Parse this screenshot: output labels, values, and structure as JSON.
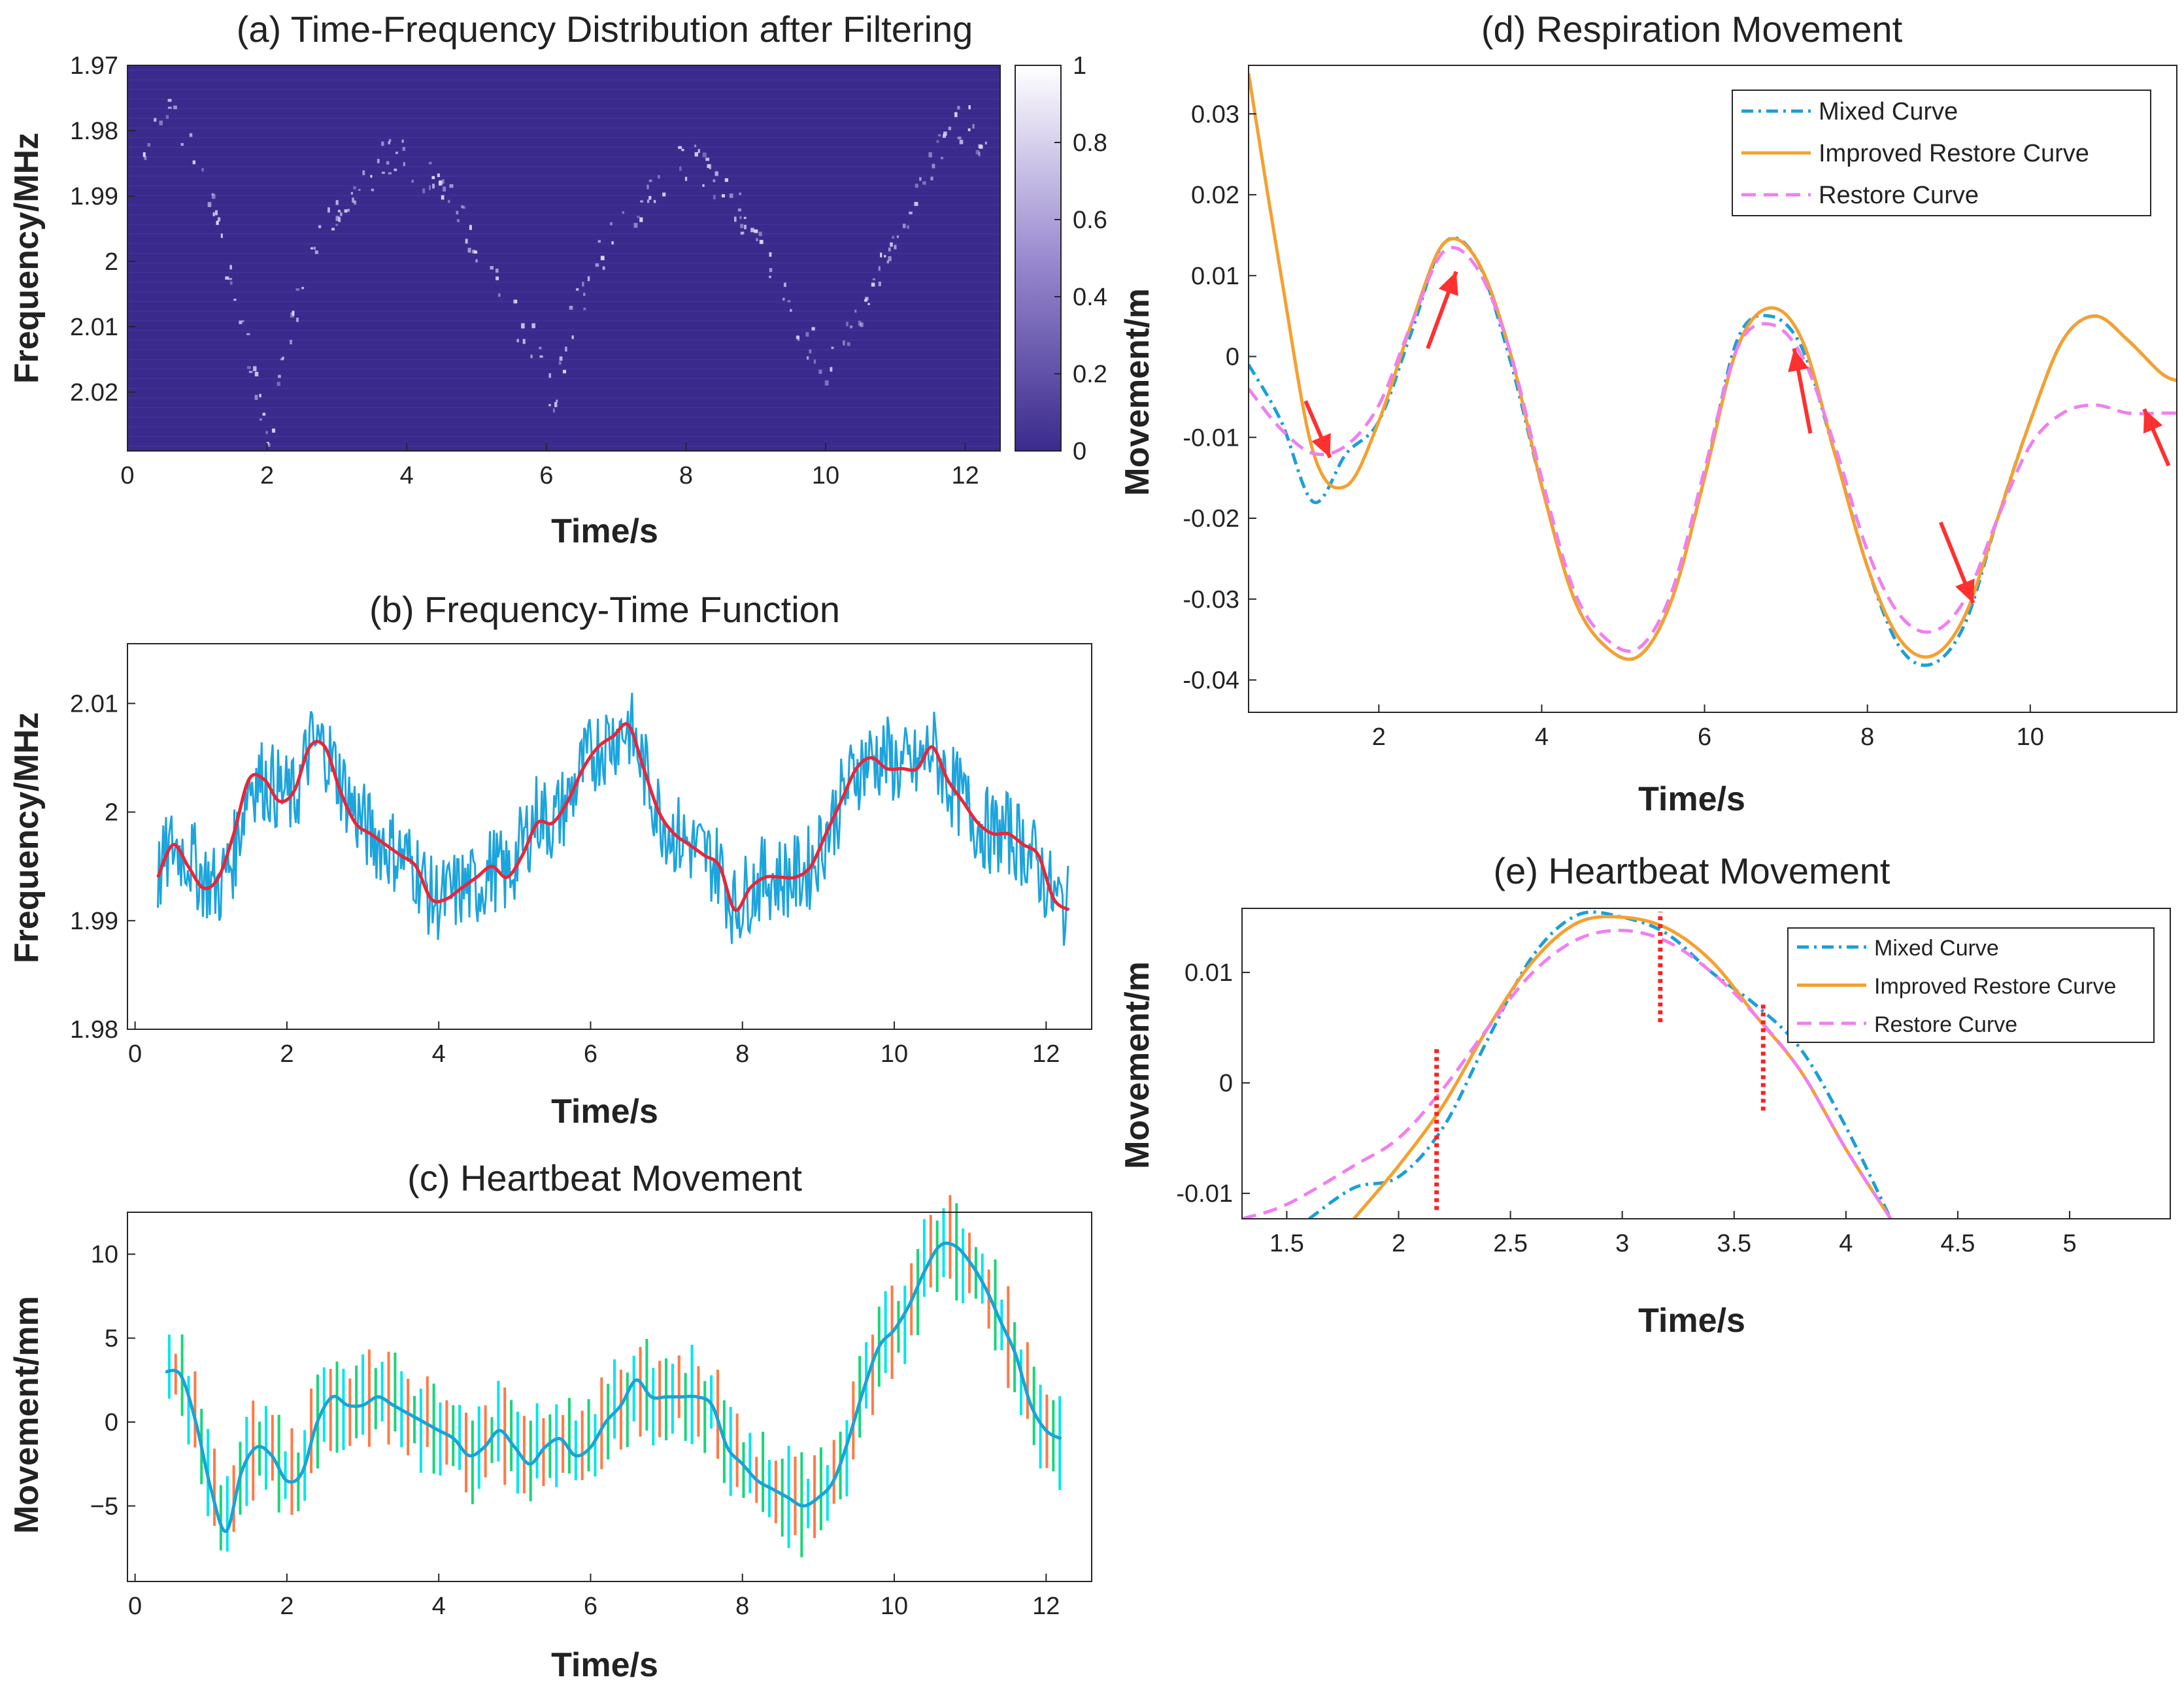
{
  "chart_data": [
    {
      "id": "a",
      "type": "heatmap",
      "title": "(a) Time-Frequency Distribution after Filtering",
      "xlabel": "Time/s",
      "ylabel": "Frequency/MHz",
      "xlim": [
        0,
        12.5
      ],
      "ylim": [
        1.97,
        2.029
      ],
      "y_reversed": true,
      "xticks": [
        0,
        2,
        4,
        6,
        8,
        10,
        12
      ],
      "yticks": [
        1.97,
        1.98,
        1.99,
        2,
        2.01,
        2.02
      ],
      "ytick_labels": [
        "1.97",
        "1.98",
        "1.99",
        "2",
        "2.01",
        "2.02"
      ],
      "colorbar": {
        "min": 0,
        "max": 1,
        "ticks": [
          0,
          0.2,
          0.4,
          0.6,
          0.8,
          1
        ],
        "tick_labels": [
          "0",
          "0.2",
          "0.4",
          "0.6",
          "0.8",
          "1"
        ]
      },
      "colors": {
        "background": "#3a2a8c",
        "ridge": "#e8e0ff"
      },
      "ridge": [
        [
          0.2,
          1.985
        ],
        [
          0.5,
          1.977
        ],
        [
          0.9,
          1.982
        ],
        [
          1.2,
          1.992
        ],
        [
          1.5,
          2.005
        ],
        [
          1.8,
          2.018
        ],
        [
          2.0,
          2.028
        ],
        [
          2.3,
          2.012
        ],
        [
          2.6,
          1.998
        ],
        [
          3.0,
          1.992
        ],
        [
          3.4,
          1.987
        ],
        [
          3.8,
          1.983
        ],
        [
          4.2,
          1.986
        ],
        [
          4.6,
          1.99
        ],
        [
          5.0,
          1.998
        ],
        [
          5.5,
          2.008
        ],
        [
          5.9,
          2.014
        ],
        [
          6.1,
          2.023
        ],
        [
          6.3,
          2.01
        ],
        [
          6.7,
          2.0
        ],
        [
          7.1,
          1.994
        ],
        [
          7.6,
          1.989
        ],
        [
          7.9,
          1.984
        ],
        [
          8.3,
          1.986
        ],
        [
          8.8,
          1.993
        ],
        [
          9.3,
          2.003
        ],
        [
          9.7,
          2.011
        ],
        [
          10.0,
          2.017
        ],
        [
          10.4,
          2.009
        ],
        [
          10.9,
          1.998
        ],
        [
          11.3,
          1.99
        ],
        [
          11.7,
          1.981
        ],
        [
          12.0,
          1.978
        ],
        [
          12.3,
          1.985
        ]
      ]
    },
    {
      "id": "b",
      "type": "line",
      "title": "(b) Frequency-Time Function",
      "xlabel": "Time/s",
      "ylabel": "Frequency/MHz",
      "xlim": [
        -0.1,
        12.6
      ],
      "ylim": [
        1.98,
        2.0155
      ],
      "xticks": [
        0,
        2,
        4,
        6,
        8,
        10,
        12
      ],
      "yticks": [
        1.98,
        1.99,
        2,
        2.01
      ],
      "ytick_labels": [
        "1.98",
        "1.99",
        "2",
        "2.01"
      ],
      "series": [
        {
          "role": "raw",
          "color": "#1ca4dc",
          "x": [
            0.3,
            0.5,
            0.7,
            0.9,
            1.1,
            1.3,
            1.5,
            1.7,
            1.9,
            2.1,
            2.3,
            2.5,
            2.7,
            2.9,
            3.1,
            3.3,
            3.5,
            3.7,
            3.9,
            4.1,
            4.3,
            4.5,
            4.7,
            4.9,
            5.1,
            5.3,
            5.5,
            5.7,
            5.9,
            6.1,
            6.3,
            6.5,
            6.7,
            6.9,
            7.1,
            7.3,
            7.5,
            7.7,
            7.9,
            8.1,
            8.3,
            8.5,
            8.7,
            8.9,
            9.1,
            9.3,
            9.5,
            9.7,
            9.9,
            10.1,
            10.3,
            10.5,
            10.7,
            10.9,
            11.1,
            11.3,
            11.5,
            11.7,
            11.9,
            12.1,
            12.3
          ],
          "y": [
            1.994,
            1.997,
            1.996,
            1.994,
            1.993,
            1.996,
            2.003,
            2.003,
            2.002,
            2.001,
            2.006,
            2.006,
            2.003,
            2.0,
            1.998,
            1.997,
            1.996,
            1.995,
            1.992,
            1.992,
            1.993,
            1.993,
            1.995,
            1.994,
            1.997,
            2.0,
            1.999,
            2.001,
            2.004,
            2.006,
            2.007,
            2.008,
            2.004,
            2.0,
            1.998,
            1.997,
            1.996,
            1.995,
            1.991,
            1.993,
            1.994,
            1.994,
            1.994,
            1.995,
            1.998,
            2.001,
            2.004,
            2.005,
            2.005,
            2.004,
            2.004,
            2.006,
            2.003,
            2.001,
            1.999,
            1.998,
            1.998,
            1.997,
            1.995,
            1.992,
            1.991
          ],
          "noise_amplitude": 0.004
        },
        {
          "role": "smoothed",
          "color": "#e8263a",
          "x": [
            0.3,
            0.5,
            0.7,
            0.9,
            1.1,
            1.3,
            1.5,
            1.7,
            1.9,
            2.1,
            2.3,
            2.5,
            2.7,
            2.9,
            3.1,
            3.3,
            3.5,
            3.7,
            3.9,
            4.1,
            4.3,
            4.5,
            4.7,
            4.9,
            5.1,
            5.3,
            5.5,
            5.7,
            5.9,
            6.1,
            6.3,
            6.5,
            6.7,
            6.9,
            7.1,
            7.3,
            7.5,
            7.7,
            7.9,
            8.1,
            8.3,
            8.5,
            8.7,
            8.9,
            9.1,
            9.3,
            9.5,
            9.7,
            9.9,
            10.1,
            10.3,
            10.5,
            10.7,
            10.9,
            11.1,
            11.3,
            11.5,
            11.7,
            11.9,
            12.1,
            12.3
          ],
          "y": [
            1.994,
            1.997,
            1.995,
            1.993,
            1.994,
            1.998,
            2.003,
            2.003,
            2.001,
            2.002,
            2.006,
            2.006,
            2.002,
            1.999,
            1.998,
            1.997,
            1.996,
            1.995,
            1.992,
            1.992,
            1.993,
            1.994,
            1.995,
            1.994,
            1.996,
            1.999,
            1.999,
            2.001,
            2.004,
            2.006,
            2.007,
            2.008,
            2.004,
            2.0,
            1.998,
            1.997,
            1.996,
            1.995,
            1.991,
            1.993,
            1.994,
            1.994,
            1.994,
            1.995,
            1.998,
            2.001,
            2.004,
            2.005,
            2.004,
            2.004,
            2.004,
            2.006,
            2.003,
            2.001,
            1.999,
            1.998,
            1.998,
            1.997,
            1.996,
            1.992,
            1.991
          ]
        }
      ]
    },
    {
      "id": "c",
      "type": "line",
      "title": "(c) Heartbeat Movement",
      "xlabel": "Time/s",
      "ylabel": "Movement/mm",
      "xlim": [
        -0.1,
        12.6
      ],
      "ylim": [
        -9.5,
        12.5
      ],
      "xticks": [
        0,
        2,
        4,
        6,
        8,
        10,
        12
      ],
      "yticks": [
        -5,
        0,
        5,
        10
      ],
      "ytick_labels": [
        "−5",
        "0",
        "5",
        "10"
      ],
      "error_bar_colors": [
        "#00e5ee",
        "#ff7a45",
        "#17d67a"
      ],
      "series": [
        {
          "color": "#1aa3d6",
          "x": [
            0.4,
            0.6,
            0.8,
            1.0,
            1.2,
            1.4,
            1.6,
            1.8,
            2.0,
            2.2,
            2.4,
            2.6,
            2.8,
            3.0,
            3.2,
            3.4,
            3.6,
            3.8,
            4.0,
            4.2,
            4.4,
            4.6,
            4.8,
            5.0,
            5.2,
            5.4,
            5.6,
            5.8,
            6.0,
            6.2,
            6.4,
            6.6,
            6.8,
            7.0,
            7.2,
            7.4,
            7.6,
            7.8,
            8.0,
            8.2,
            8.4,
            8.6,
            8.8,
            9.0,
            9.2,
            9.4,
            9.6,
            9.8,
            10.0,
            10.2,
            10.4,
            10.6,
            10.8,
            11.0,
            11.2,
            11.4,
            11.6,
            11.8,
            12.0,
            12.2
          ],
          "y": [
            3.0,
            2.8,
            0.0,
            -4.0,
            -6.5,
            -3.0,
            -1.5,
            -2.0,
            -3.5,
            -3.0,
            0.0,
            1.5,
            1.0,
            1.0,
            1.5,
            1.0,
            0.5,
            0.0,
            -0.5,
            -1.0,
            -2.0,
            -1.5,
            -0.5,
            -1.5,
            -2.5,
            -1.5,
            -1.0,
            -2.0,
            -1.5,
            0.0,
            1.0,
            2.5,
            1.5,
            1.5,
            1.5,
            1.5,
            1.0,
            -1.5,
            -2.5,
            -3.5,
            -4.0,
            -4.5,
            -5.0,
            -4.5,
            -3.5,
            -1.0,
            2.0,
            4.5,
            5.5,
            7.0,
            9.0,
            10.5,
            10.5,
            9.5,
            8.0,
            6.0,
            4.0,
            1.0,
            -0.5,
            -1.0
          ]
        }
      ]
    },
    {
      "id": "d",
      "type": "line",
      "title": "(d) Respiration Movement",
      "xlabel": "Time/s",
      "ylabel": "Movement/m",
      "xlim": [
        0.4,
        11.8
      ],
      "ylim": [
        -0.044,
        0.036
      ],
      "xticks": [
        2,
        4,
        6,
        8,
        10
      ],
      "yticks": [
        -0.04,
        -0.03,
        -0.02,
        -0.01,
        0,
        0.01,
        0.02,
        0.03
      ],
      "ytick_labels": [
        "-0.04",
        "-0.03",
        "-0.02",
        "-0.01",
        "0",
        "0.01",
        "0.02",
        "0.03"
      ],
      "legend_position": "top-right",
      "series": [
        {
          "name": "Mixed Curve",
          "color": "#1a9fd9",
          "style": "dashdot",
          "x": [
            0.4,
            0.8,
            1.2,
            1.6,
            2.0,
            2.4,
            2.8,
            3.2,
            3.6,
            4.0,
            4.4,
            4.8,
            5.2,
            5.6,
            6.0,
            6.4,
            6.8,
            7.2,
            7.6,
            8.0,
            8.4,
            8.8,
            9.2,
            9.6,
            10.0,
            10.4,
            10.8,
            11.2,
            11.6,
            11.8
          ],
          "y": [
            -0.001,
            -0.008,
            -0.018,
            -0.012,
            -0.008,
            0.003,
            0.014,
            0.012,
            0.0,
            -0.016,
            -0.03,
            -0.036,
            -0.037,
            -0.03,
            -0.015,
            0.002,
            0.005,
            0.001,
            -0.012,
            -0.026,
            -0.036,
            -0.038,
            -0.033,
            -0.02,
            -0.008,
            0.002,
            0.005,
            0.002,
            -0.002,
            -0.003
          ]
        },
        {
          "name": "Improved Restore Curve",
          "color": "#f5a030",
          "style": "solid",
          "x": [
            0.4,
            0.8,
            1.2,
            1.6,
            2.0,
            2.4,
            2.8,
            3.2,
            3.6,
            4.0,
            4.4,
            4.8,
            5.2,
            5.6,
            6.0,
            6.4,
            6.8,
            7.2,
            7.6,
            8.0,
            8.4,
            8.8,
            9.2,
            9.6,
            10.0,
            10.4,
            10.8,
            11.2,
            11.6,
            11.8
          ],
          "y": [
            0.035,
            0.01,
            -0.012,
            -0.016,
            -0.008,
            0.004,
            0.014,
            0.012,
            0.001,
            -0.016,
            -0.03,
            -0.036,
            -0.037,
            -0.03,
            -0.015,
            0.001,
            0.006,
            0.002,
            -0.012,
            -0.026,
            -0.035,
            -0.037,
            -0.032,
            -0.02,
            -0.008,
            0.002,
            0.005,
            0.002,
            -0.002,
            -0.003
          ]
        },
        {
          "name": "Restore Curve",
          "color": "#f07ff0",
          "style": "dashed",
          "x": [
            0.4,
            0.8,
            1.2,
            1.6,
            2.0,
            2.4,
            2.8,
            3.2,
            3.6,
            4.0,
            4.4,
            4.8,
            5.2,
            5.6,
            6.0,
            6.4,
            6.8,
            7.2,
            7.6,
            8.0,
            8.4,
            8.8,
            9.2,
            9.6,
            10.0,
            10.4,
            10.8,
            11.2,
            11.6,
            11.8
          ],
          "y": [
            -0.004,
            -0.009,
            -0.012,
            -0.011,
            -0.006,
            0.004,
            0.013,
            0.011,
            0.001,
            -0.015,
            -0.029,
            -0.035,
            -0.036,
            -0.029,
            -0.014,
            0.001,
            0.004,
            0.0,
            -0.011,
            -0.024,
            -0.032,
            -0.034,
            -0.03,
            -0.02,
            -0.011,
            -0.007,
            -0.006,
            -0.007,
            -0.007,
            -0.007
          ]
        }
      ],
      "annotations": [
        {
          "type": "arrow",
          "color": "#ff3030",
          "from": [
            1.1,
            -0.0055
          ],
          "to": [
            1.4,
            -0.0125
          ]
        },
        {
          "type": "arrow",
          "color": "#ff3030",
          "from": [
            2.6,
            0.001
          ],
          "to": [
            2.95,
            0.0105
          ]
        },
        {
          "type": "arrow",
          "color": "#ff3030",
          "from": [
            7.3,
            -0.0095
          ],
          "to": [
            7.1,
            0.001
          ]
        },
        {
          "type": "arrow",
          "color": "#ff3030",
          "from": [
            8.9,
            -0.0205
          ],
          "to": [
            9.3,
            -0.0305
          ]
        },
        {
          "type": "arrow",
          "color": "#ff3030",
          "from": [
            11.7,
            -0.0135
          ],
          "to": [
            11.4,
            -0.0065
          ]
        }
      ]
    },
    {
      "id": "e",
      "type": "line",
      "title": "(e) Heartbeat Movement",
      "xlabel": "Time/s",
      "ylabel": "Movement/m",
      "xlim": [
        1.3,
        5.45
      ],
      "ylim": [
        -0.0123,
        0.0158
      ],
      "xticks": [
        1.5,
        2,
        2.5,
        3,
        3.5,
        4,
        4.5,
        5
      ],
      "yticks": [
        -0.01,
        0,
        0.01
      ],
      "ytick_labels": [
        "-0.01",
        "0",
        "0.01"
      ],
      "legend_position": "top-right",
      "series": [
        {
          "name": "Mixed Curve",
          "color": "#1a9fd9",
          "style": "dashdot",
          "x": [
            1.6,
            1.8,
            2.0,
            2.2,
            2.4,
            2.6,
            2.8,
            3.0,
            3.2,
            3.4,
            3.6,
            3.8,
            4.0,
            4.2
          ],
          "y": [
            -0.0123,
            -0.0095,
            -0.0085,
            -0.004,
            0.004,
            0.0115,
            0.0152,
            0.015,
            0.0135,
            0.01,
            0.007,
            0.003,
            -0.004,
            -0.0123
          ]
        },
        {
          "name": "Improved Restore Curve",
          "color": "#f5a030",
          "style": "solid",
          "x": [
            1.8,
            2.0,
            2.2,
            2.4,
            2.6,
            2.8,
            3.0,
            3.2,
            3.4,
            3.6,
            3.8,
            4.0,
            4.2
          ],
          "y": [
            -0.0123,
            -0.0075,
            -0.002,
            0.005,
            0.011,
            0.0145,
            0.015,
            0.014,
            0.011,
            0.006,
            0.001,
            -0.006,
            -0.0123
          ]
        },
        {
          "name": "Restore Curve",
          "color": "#f07ff0",
          "style": "dashed",
          "x": [
            1.3,
            1.5,
            1.8,
            2.0,
            2.2,
            2.4,
            2.6,
            2.8,
            3.0,
            3.2,
            3.4,
            3.6,
            3.8,
            4.0,
            4.2
          ],
          "y": [
            -0.0123,
            -0.011,
            -0.0075,
            -0.005,
            -0.0005,
            0.005,
            0.01,
            0.013,
            0.0138,
            0.0128,
            0.01,
            0.006,
            0.001,
            -0.006,
            -0.0123
          ]
        }
      ],
      "annotations": [
        {
          "type": "vline_dotted",
          "color": "#ff2020",
          "x": 2.17,
          "y": [
            -0.0115,
            0.0033
          ]
        },
        {
          "type": "vline_dotted",
          "color": "#ff2020",
          "x": 3.17,
          "y": [
            0.0055,
            0.0155
          ]
        },
        {
          "type": "vline_dotted",
          "color": "#ff2020",
          "x": 3.63,
          "y": [
            -0.0025,
            0.0072
          ]
        }
      ]
    }
  ]
}
